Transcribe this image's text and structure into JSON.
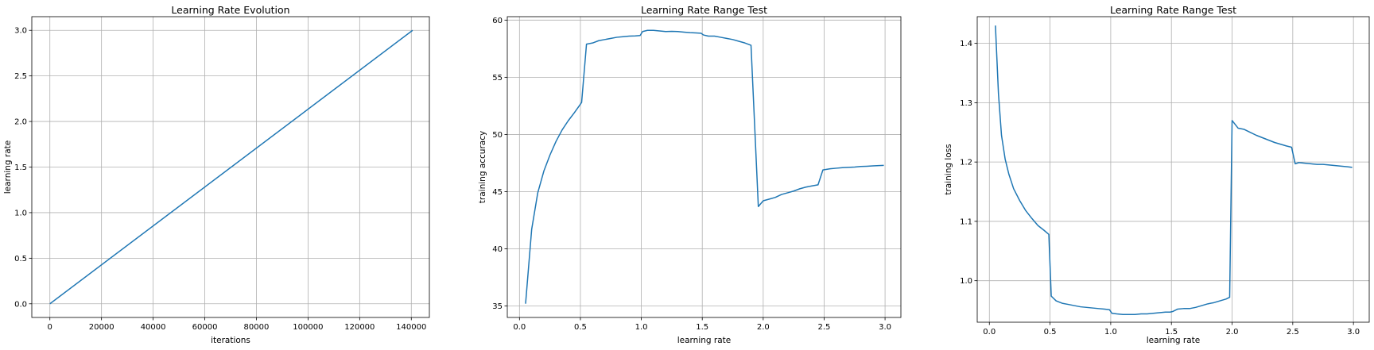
{
  "chart_data": [
    {
      "type": "line",
      "title": "Learning Rate Evolution",
      "xlabel": "iterations",
      "ylabel": "learning rate",
      "xlim": [
        -7000,
        147000
      ],
      "ylim": [
        -0.15,
        3.15
      ],
      "xticks": [
        0,
        20000,
        40000,
        60000,
        80000,
        100000,
        120000,
        140000
      ],
      "xtick_labels": [
        "0",
        "20000",
        "40000",
        "60000",
        "80000",
        "100000",
        "120000",
        "140000"
      ],
      "yticks": [
        0.0,
        0.5,
        1.0,
        1.5,
        2.0,
        2.5,
        3.0
      ],
      "ytick_labels": [
        "0.0",
        "0.5",
        "1.0",
        "1.5",
        "2.0",
        "2.5",
        "3.0"
      ],
      "grid": true,
      "color": "#1f77b4",
      "series": [
        {
          "x": [
            0,
            140500
          ],
          "y": [
            0.0,
            3.0
          ]
        }
      ]
    },
    {
      "type": "line",
      "title": "Learning Rate Range Test",
      "xlabel": "learning rate",
      "ylabel": "training accuracy",
      "xlim": [
        -0.1,
        3.13
      ],
      "ylim": [
        34.0,
        60.3
      ],
      "xticks": [
        0.0,
        0.5,
        1.0,
        1.5,
        2.0,
        2.5,
        3.0
      ],
      "xtick_labels": [
        "0.0",
        "0.5",
        "1.0",
        "1.5",
        "2.0",
        "2.5",
        "3.0"
      ],
      "yticks": [
        35,
        40,
        45,
        50,
        55,
        60
      ],
      "ytick_labels": [
        "35",
        "40",
        "45",
        "50",
        "55",
        "60"
      ],
      "grid": true,
      "color": "#1f77b4",
      "series": [
        {
          "x": [
            0.05,
            0.1,
            0.15,
            0.2,
            0.25,
            0.3,
            0.35,
            0.4,
            0.45,
            0.49,
            0.51,
            0.55,
            0.6,
            0.65,
            0.7,
            0.75,
            0.8,
            0.85,
            0.9,
            0.95,
            0.99,
            1.01,
            1.05,
            1.1,
            1.15,
            1.2,
            1.25,
            1.3,
            1.35,
            1.4,
            1.45,
            1.49,
            1.51,
            1.55,
            1.6,
            1.65,
            1.7,
            1.75,
            1.8,
            1.85,
            1.9,
            1.96,
            2.0,
            2.05,
            2.1,
            2.15,
            2.2,
            2.25,
            2.3,
            2.35,
            2.4,
            2.45,
            2.49,
            2.52,
            2.55,
            2.6,
            2.65,
            2.7,
            2.75,
            2.8,
            2.85,
            2.9,
            2.95,
            2.99
          ],
          "y": [
            35.2,
            41.7,
            44.9,
            46.8,
            48.2,
            49.4,
            50.4,
            51.2,
            51.9,
            52.5,
            52.8,
            57.9,
            58.0,
            58.2,
            58.3,
            58.4,
            58.5,
            58.55,
            58.6,
            58.62,
            58.65,
            59.0,
            59.1,
            59.1,
            59.05,
            59.0,
            59.02,
            59.0,
            58.95,
            58.9,
            58.88,
            58.85,
            58.7,
            58.6,
            58.6,
            58.5,
            58.4,
            58.3,
            58.15,
            58.0,
            57.8,
            43.7,
            44.2,
            44.35,
            44.5,
            44.75,
            44.9,
            45.05,
            45.25,
            45.4,
            45.5,
            45.6,
            46.9,
            46.95,
            47.0,
            47.05,
            47.1,
            47.12,
            47.15,
            47.2,
            47.22,
            47.25,
            47.28,
            47.3
          ]
        }
      ]
    },
    {
      "type": "line",
      "title": "Learning Rate Range Test",
      "xlabel": "learning rate",
      "ylabel": "training loss",
      "xlim": [
        -0.1,
        3.13
      ],
      "ylim": [
        0.93,
        1.445
      ],
      "xticks": [
        0.0,
        0.5,
        1.0,
        1.5,
        2.0,
        2.5,
        3.0
      ],
      "xtick_labels": [
        "0.0",
        "0.5",
        "1.0",
        "1.5",
        "2.0",
        "2.5",
        "3.0"
      ],
      "yticks": [
        1.0,
        1.1,
        1.2,
        1.3,
        1.4
      ],
      "ytick_labels": [
        "1.0",
        "1.1",
        "1.2",
        "1.3",
        "1.4"
      ],
      "grid": true,
      "color": "#1f77b4",
      "series": [
        {
          "x": [
            0.05,
            0.075,
            0.1,
            0.13,
            0.16,
            0.2,
            0.25,
            0.3,
            0.35,
            0.4,
            0.45,
            0.49,
            0.51,
            0.55,
            0.6,
            0.65,
            0.7,
            0.75,
            0.8,
            0.85,
            0.9,
            0.95,
            0.99,
            1.01,
            1.05,
            1.1,
            1.15,
            1.2,
            1.25,
            1.3,
            1.35,
            1.4,
            1.45,
            1.49,
            1.51,
            1.55,
            1.6,
            1.65,
            1.7,
            1.75,
            1.8,
            1.85,
            1.9,
            1.95,
            1.98,
            2.0,
            2.05,
            2.1,
            2.15,
            2.2,
            2.25,
            2.3,
            2.35,
            2.4,
            2.45,
            2.49,
            2.52,
            2.55,
            2.6,
            2.65,
            2.7,
            2.75,
            2.8,
            2.85,
            2.9,
            2.95,
            2.99
          ],
          "y": [
            1.43,
            1.315,
            1.245,
            1.205,
            1.18,
            1.155,
            1.135,
            1.118,
            1.105,
            1.093,
            1.085,
            1.078,
            0.974,
            0.966,
            0.962,
            0.96,
            0.958,
            0.956,
            0.955,
            0.954,
            0.953,
            0.952,
            0.951,
            0.945,
            0.944,
            0.943,
            0.943,
            0.943,
            0.944,
            0.944,
            0.945,
            0.946,
            0.947,
            0.947,
            0.948,
            0.952,
            0.953,
            0.953,
            0.955,
            0.958,
            0.961,
            0.963,
            0.966,
            0.969,
            0.972,
            1.27,
            1.257,
            1.255,
            1.25,
            1.245,
            1.241,
            1.237,
            1.233,
            1.23,
            1.227,
            1.225,
            1.197,
            1.199,
            1.198,
            1.197,
            1.196,
            1.196,
            1.195,
            1.194,
            1.193,
            1.192,
            1.191
          ]
        }
      ]
    }
  ]
}
